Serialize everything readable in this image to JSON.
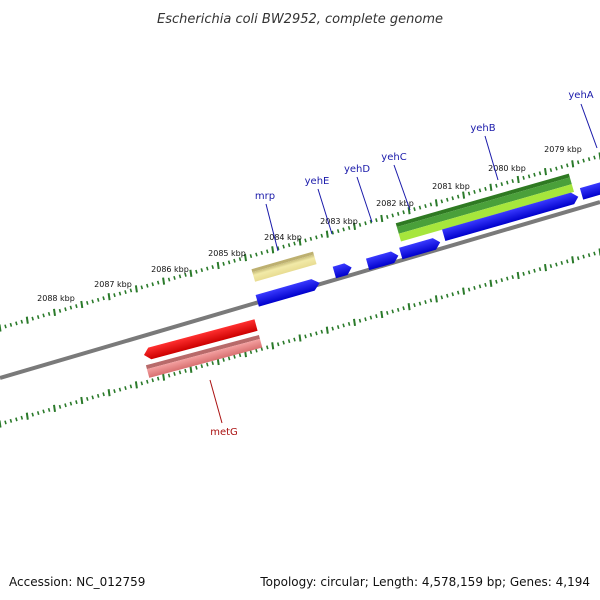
{
  "title": "Escherichia coli BW2952, complete genome",
  "footer": {
    "accession": "Accession: NC_012759",
    "summary": "Topology: circular; Length: 4,578,159 bp; Genes: 4,194"
  },
  "colors": {
    "forward_cds": "#1a1aee",
    "reverse_cds": "#ee1111",
    "reverse_cds_light": "#e88a8a",
    "feature_green_dark": "#3a8a2a",
    "feature_green_light": "#a6e63c",
    "feature_khaki": "#e6dc96",
    "backbone": "#7a7a7a",
    "ticks": "#2a7a2a",
    "label_forward": "#1a1aaa",
    "label_reverse": "#aa1111"
  },
  "scale": {
    "unit": "kbp",
    "labels": [
      "2088 kbp",
      "2087 kbp",
      "2086 kbp",
      "2085 kbp",
      "2084 kbp",
      "2083 kbp",
      "2082 kbp",
      "2081 kbp",
      "2080 kbp",
      "2079 kbp"
    ]
  },
  "genes": {
    "forward": [
      "mrp",
      "yehE",
      "yehD",
      "yehC",
      "yehB",
      "yehA"
    ],
    "reverse": [
      "metG"
    ]
  }
}
